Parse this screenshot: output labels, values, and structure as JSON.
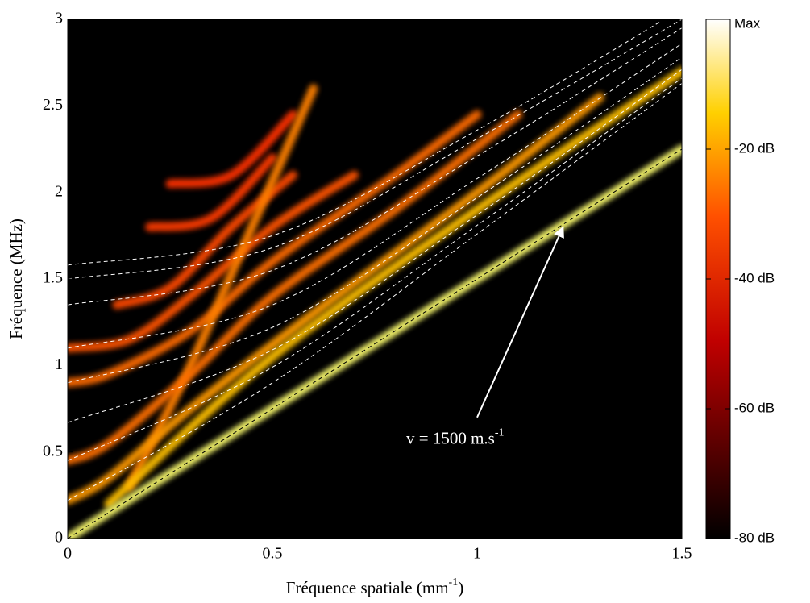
{
  "chart_data": {
    "type": "heatmap",
    "xlabel": "Fréquence spatiale (mm",
    "xlabel_exponent": "-1",
    "xlabel_suffix": ")",
    "ylabel": "Fréquence (MHz)",
    "xlim": [
      0,
      1.5
    ],
    "ylim": [
      0,
      3
    ],
    "xticks": [
      0,
      0.5,
      1,
      1.5
    ],
    "yticks": [
      0,
      0.5,
      1,
      1.5,
      2,
      2.5,
      3
    ],
    "background": "#000000",
    "ridges": [
      {
        "color": "#ff3a00",
        "x": [
          0.2,
          0.35,
          0.5
        ],
        "y": [
          1.8,
          1.85,
          2.2
        ]
      },
      {
        "color": "#ff3000",
        "x": [
          0.25,
          0.4,
          0.55
        ],
        "y": [
          2.05,
          2.1,
          2.45
        ]
      },
      {
        "color": "#ff4a00",
        "x": [
          0.12,
          0.25,
          0.4,
          0.55
        ],
        "y": [
          1.35,
          1.45,
          1.8,
          2.1
        ]
      },
      {
        "color": "#ff5200",
        "x": [
          0,
          0.15,
          0.3,
          0.5,
          0.7
        ],
        "y": [
          1.1,
          1.15,
          1.4,
          1.8,
          2.1
        ]
      },
      {
        "color": "#ff6a00",
        "x": [
          0,
          0.1,
          0.3,
          0.5,
          0.8,
          1.0
        ],
        "y": [
          0.9,
          0.95,
          1.2,
          1.6,
          2.1,
          2.45
        ]
      },
      {
        "color": "#ff8000",
        "x": [
          0.15,
          0.3,
          0.45,
          0.6
        ],
        "y": [
          0.3,
          1.0,
          1.8,
          2.6
        ]
      },
      {
        "color": "#ff7000",
        "x": [
          0,
          0.1,
          0.3,
          0.5,
          0.8,
          1.1
        ],
        "y": [
          0.45,
          0.55,
          0.95,
          1.4,
          1.9,
          2.45
        ]
      },
      {
        "color": "#ff9a00",
        "x": [
          0,
          0.1,
          0.3,
          0.6,
          1.0,
          1.3
        ],
        "y": [
          0.22,
          0.35,
          0.75,
          1.3,
          2.0,
          2.55
        ]
      },
      {
        "color": "#ffc000",
        "x": [
          0.1,
          0.5,
          1.0,
          1.5
        ],
        "y": [
          0.2,
          1.05,
          1.9,
          2.7
        ]
      },
      {
        "color": "#ffff70",
        "x": [
          0,
          0.5,
          1.0,
          1.5
        ],
        "y": [
          0,
          0.75,
          1.5,
          2.25
        ]
      }
    ],
    "dispersion_curves": [
      {
        "color": "#ffffff",
        "x": [
          0,
          0.5,
          1,
          1.45
        ],
        "y": [
          1.58,
          1.75,
          2.36,
          2.99
        ]
      },
      {
        "color": "#ffffff",
        "x": [
          0,
          0.5,
          1,
          1.5
        ],
        "y": [
          1.5,
          1.68,
          2.31,
          3.0
        ]
      },
      {
        "color": "#ffffff",
        "x": [
          0,
          0.5,
          1,
          1.5
        ],
        "y": [
          1.35,
          1.55,
          2.21,
          2.95
        ]
      },
      {
        "color": "#ffffff",
        "x": [
          0,
          0.5,
          1,
          1.5
        ],
        "y": [
          1.1,
          1.35,
          2.08,
          2.86
        ]
      },
      {
        "color": "#ffffff",
        "x": [
          0,
          0.5,
          1,
          1.5
        ],
        "y": [
          0.9,
          1.22,
          1.97,
          2.78
        ]
      },
      {
        "color": "#ffffff",
        "x": [
          0,
          0.5,
          1,
          1.5
        ],
        "y": [
          0.67,
          1.09,
          1.87,
          2.71
        ]
      },
      {
        "color": "#ffffff",
        "x": [
          0,
          0.5,
          1,
          1.5
        ],
        "y": [
          0.45,
          0.99,
          1.81,
          2.66
        ]
      },
      {
        "color": "#ffffff",
        "x": [
          0,
          0.5,
          1,
          1.5
        ],
        "y": [
          0.22,
          0.9,
          1.76,
          2.63
        ]
      },
      {
        "color": "#000000",
        "x": [
          0,
          1.5
        ],
        "y": [
          0,
          2.25
        ]
      }
    ],
    "annotation": {
      "text": "v = 1500 m.s",
      "exponent": "-1",
      "xy": [
        1.21,
        1.8
      ],
      "xytext": [
        1.0,
        0.7
      ]
    },
    "colorbar": {
      "lim": [
        -80,
        0
      ],
      "ticks": [
        {
          "value": 0,
          "label": "Max"
        },
        {
          "value": -20,
          "label": "-20 dB"
        },
        {
          "value": -40,
          "label": "-40 dB"
        },
        {
          "value": -60,
          "label": "-60 dB"
        },
        {
          "value": -80,
          "label": "-80 dB"
        }
      ]
    }
  }
}
